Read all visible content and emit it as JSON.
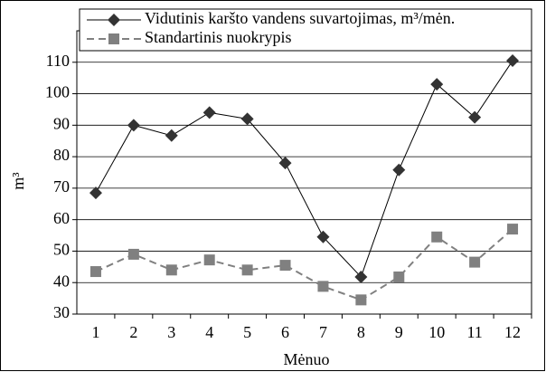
{
  "chart_data": {
    "type": "line",
    "categories": [
      "1",
      "2",
      "3",
      "4",
      "5",
      "6",
      "7",
      "8",
      "9",
      "10",
      "11",
      "12"
    ],
    "series": [
      {
        "name": "Vidutinis karšto vandens suvartojimas, m³/mėn.",
        "color": "#000000",
        "marker_color": "#333333",
        "marker": "diamond",
        "dash": false,
        "values": [
          68.5,
          90,
          86.7,
          94,
          92,
          78,
          54.5,
          41.8,
          75.8,
          103,
          92.5,
          110.5
        ]
      },
      {
        "name": "Standartinis nuokrypis",
        "color": "#808080",
        "marker_color": "#808080",
        "marker": "square",
        "dash": true,
        "values": [
          43.5,
          49,
          44,
          47.2,
          44,
          45.5,
          38.8,
          34.5,
          41.8,
          54.5,
          46.5,
          57
        ]
      }
    ],
    "ylabel": "m³",
    "xlabel": "Mėnuo",
    "ylim": [
      30,
      120
    ],
    "yticks": [
      30,
      40,
      50,
      60,
      70,
      80,
      90,
      100,
      110
    ],
    "grid": true
  }
}
